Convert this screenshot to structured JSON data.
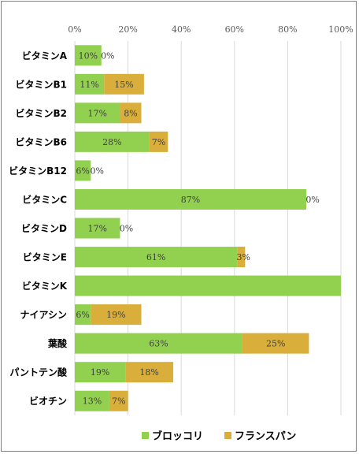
{
  "chart_data": {
    "type": "bar",
    "orientation": "horizontal",
    "stacked": true,
    "categories": [
      "ビタミンA",
      "ビタミンB1",
      "ビタミンB2",
      "ビタミンB6",
      "ビタミンB12",
      "ビタミンC",
      "ビタミンD",
      "ビタミンE",
      "ビタミンK",
      "ナイアシン",
      "葉酸",
      "パントテン酸",
      "ビオチン"
    ],
    "series": [
      {
        "name": "ブロッコリ",
        "color": "#92d050",
        "values": [
          10,
          11,
          17,
          28,
          6,
          87,
          17,
          61,
          100,
          6,
          63,
          19,
          13
        ],
        "labels": [
          "10%",
          "11%",
          "17%",
          "28%",
          "6%",
          "87%",
          "17%",
          "61%",
          "",
          "6%",
          "63%",
          "19%",
          "13%"
        ]
      },
      {
        "name": "フランスパン",
        "color": "#d9ae3a",
        "values": [
          0,
          15,
          8,
          7,
          0,
          0,
          0,
          3,
          0,
          19,
          25,
          18,
          7
        ],
        "labels": [
          "0%",
          "15%",
          "8%",
          "7%",
          "0%",
          "0%",
          "0%",
          "3%",
          "",
          "19%",
          "25%",
          "18%",
          "7%"
        ]
      }
    ],
    "xlim": [
      0,
      100
    ],
    "xticks": [
      "0%",
      "20%",
      "40%",
      "60%",
      "80%",
      "100%"
    ],
    "grid": true,
    "legend": "bottom"
  }
}
